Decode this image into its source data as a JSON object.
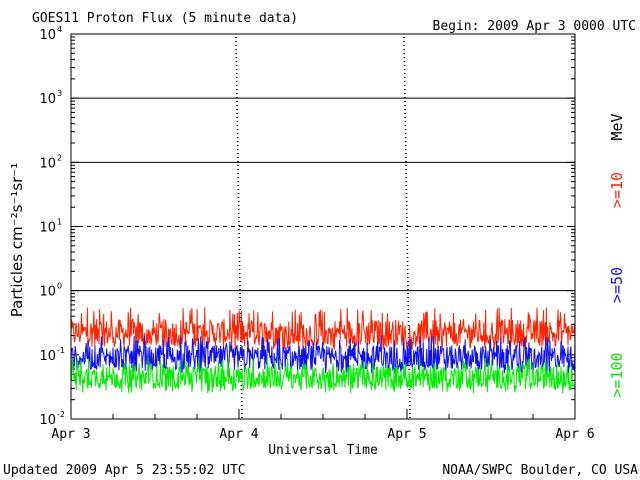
{
  "title": "GOES11 Proton Flux (5 minute data)",
  "begin": "Begin: 2009 Apr 3 0000 UTC",
  "updated": "Updated 2009 Apr  5 23:55:02 UTC",
  "credit": "NOAA/SWPC Boulder, CO USA",
  "colors": {
    "ge10": "#ff2200",
    "ge50": "#1010ee",
    "ge100": "#00ee00",
    "axis": "#000000"
  },
  "chart_data": {
    "type": "line",
    "title": "GOES11 Proton Flux (5 minute data)",
    "xlabel": "Universal Time",
    "ylabel": "Particles cm⁻²s⁻¹sr⁻¹",
    "y_scale": "log",
    "ylim": [
      0.01,
      10000
    ],
    "xlim": [
      "2009-04-03 00:00",
      "2009-04-06 00:00"
    ],
    "x_ticks": [
      "Apr 3",
      "Apr 4",
      "Apr 5",
      "Apr 6"
    ],
    "y_ticks": [
      {
        "base": "10",
        "exp": "-2"
      },
      {
        "base": "10",
        "exp": "-1"
      },
      {
        "base": "10",
        "exp": "0"
      },
      {
        "base": "10",
        "exp": "1"
      },
      {
        "base": "10",
        "exp": "2"
      },
      {
        "base": "10",
        "exp": "3"
      },
      {
        "base": "10",
        "exp": "4"
      }
    ],
    "threshold_lines": [
      {
        "value": 1,
        "style": "solid"
      },
      {
        "value": 10,
        "style": "dashed"
      },
      {
        "value": 100,
        "style": "solid"
      },
      {
        "value": 1000,
        "style": "solid"
      }
    ],
    "units_label": "MeV",
    "series": [
      {
        "name": ">=10",
        "color": "#ff2200",
        "typical": 0.22,
        "range": [
          0.12,
          0.55
        ]
      },
      {
        "name": ">=50",
        "color": "#1010ee",
        "typical": 0.09,
        "range": [
          0.05,
          0.2
        ]
      },
      {
        "name": ">=100",
        "color": "#00ee00",
        "typical": 0.045,
        "range": [
          0.025,
          0.09
        ]
      }
    ],
    "grid": false
  }
}
